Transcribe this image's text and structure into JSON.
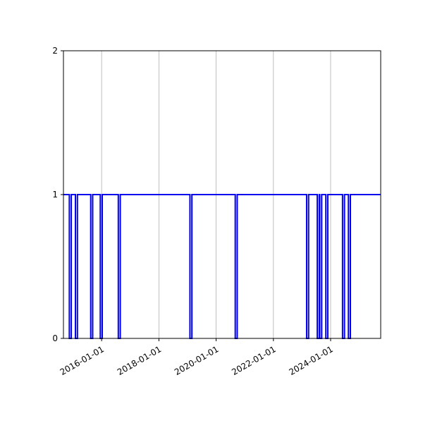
{
  "chart_data": {
    "type": "line",
    "title": "",
    "xlabel": "",
    "ylabel": "",
    "x_axis_type": "date",
    "xlim": [
      "2014-09-01",
      "2025-10-01"
    ],
    "ylim": [
      0,
      2
    ],
    "yticks": [
      0,
      1,
      2
    ],
    "ytick_labels": [
      "0",
      "1",
      "2"
    ],
    "xticks": [
      "2016-01-01",
      "2018-01-01",
      "2020-01-01",
      "2022-01-01",
      "2024-01-01"
    ],
    "xtick_labels": [
      "2016-01-01",
      "2018-01-01",
      "2020-01-01",
      "2022-01-01",
      "2024-01-01"
    ],
    "grid": {
      "x": true,
      "y": false
    },
    "series": [
      {
        "color": "#0000ee",
        "baseline": 1,
        "dips_to": 0,
        "dip_dates": [
          "2014-11-15",
          "2015-02-01",
          "2015-08-15",
          "2015-12-15",
          "2016-08-01",
          "2019-02-01",
          "2020-09-01",
          "2023-03-01",
          "2023-07-15",
          "2023-08-15",
          "2023-11-01",
          "2024-06-01",
          "2024-08-15"
        ]
      }
    ]
  }
}
